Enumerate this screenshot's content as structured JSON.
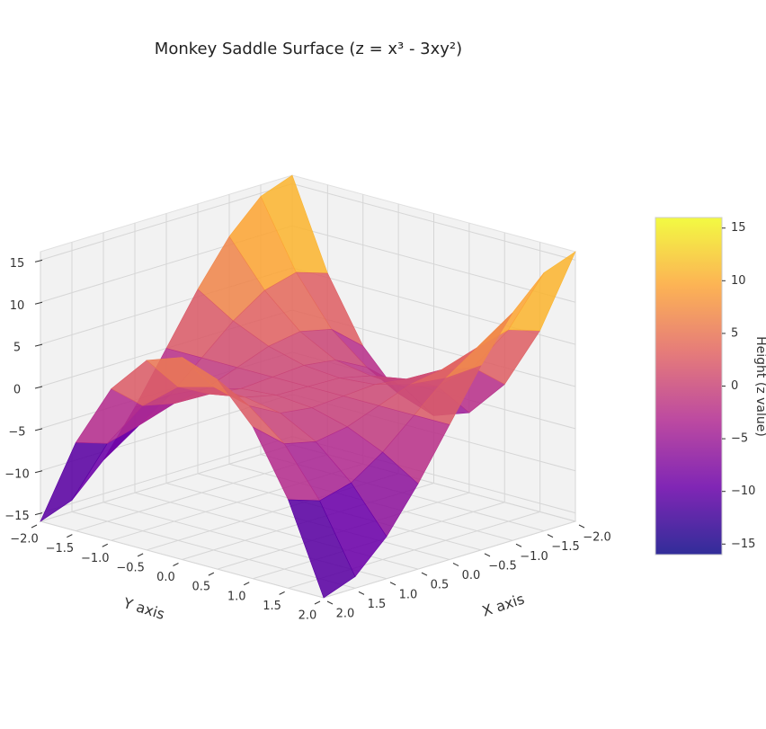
{
  "chart_data": {
    "type": "surface",
    "title": "Monkey Saddle Surface (z = x³ - 3xy²)",
    "x_label": "X axis",
    "y_label": "Y axis",
    "colorbar_label": "Height (z value)",
    "x": [
      -2,
      -1.5,
      -1,
      -0.5,
      0,
      0.5,
      1,
      1.5,
      2
    ],
    "y": [
      -2,
      -1.5,
      -1,
      -0.5,
      0,
      0.5,
      1,
      1.5,
      2
    ],
    "z": [
      [
        16,
        5.5,
        -2,
        -6.5,
        -8,
        -6.5,
        -2,
        5.5,
        16
      ],
      [
        14.625,
        6.75,
        1.125,
        -2.25,
        -3.375,
        -2.25,
        1.125,
        6.75,
        14.625
      ],
      [
        11,
        5.75,
        2,
        -0.25,
        -1,
        -0.25,
        2,
        5.75,
        11
      ],
      [
        5.875,
        3.25,
        1.375,
        0.25,
        -0.125,
        0.25,
        1.375,
        3.25,
        5.875
      ],
      [
        0,
        0,
        0,
        0,
        0,
        0,
        0,
        0,
        0
      ],
      [
        -5.875,
        -3.25,
        -1.375,
        -0.25,
        0.125,
        -0.25,
        -1.375,
        -3.25,
        -5.875
      ],
      [
        -11,
        -5.75,
        -2,
        0.25,
        1,
        0.25,
        -2,
        -5.75,
        -11
      ],
      [
        -14.625,
        -6.75,
        -1.125,
        2.25,
        3.375,
        2.25,
        -1.125,
        -6.75,
        -14.625
      ],
      [
        -16,
        -5.5,
        2,
        6.5,
        8,
        6.5,
        2,
        -5.5,
        -16
      ]
    ],
    "xlim": [
      -2,
      2
    ],
    "ylim": [
      -2,
      2
    ],
    "zlim": [
      -16,
      16
    ],
    "xticks": [
      {
        "value": -2,
        "label": "−2.0"
      },
      {
        "value": -1.5,
        "label": "−1.5"
      },
      {
        "value": -1,
        "label": "−1.0"
      },
      {
        "value": -0.5,
        "label": "−0.5"
      },
      {
        "value": 0,
        "label": "0.0"
      },
      {
        "value": 0.5,
        "label": "0.5"
      },
      {
        "value": 1,
        "label": "1.0"
      },
      {
        "value": 1.5,
        "label": "1.5"
      },
      {
        "value": 2,
        "label": "2.0"
      }
    ],
    "yticks": [
      {
        "value": -2,
        "label": "−2.0"
      },
      {
        "value": -1.5,
        "label": "−1.5"
      },
      {
        "value": -1,
        "label": "−1.0"
      },
      {
        "value": -0.5,
        "label": "−0.5"
      },
      {
        "value": 0,
        "label": "0.0"
      },
      {
        "value": 0.5,
        "label": "0.5"
      },
      {
        "value": 1,
        "label": "1.0"
      },
      {
        "value": 1.5,
        "label": "1.5"
      },
      {
        "value": 2,
        "label": "2.0"
      }
    ],
    "zticks": [
      {
        "value": -15,
        "label": "−15"
      },
      {
        "value": -10,
        "label": "−10"
      },
      {
        "value": -5,
        "label": "−5"
      },
      0,
      5,
      10,
      15
    ],
    "colormap": [
      "#0d0887",
      "#6a00a8",
      "#b12a90",
      "#e16462",
      "#fca636",
      "#f0f921"
    ],
    "grid": true
  }
}
